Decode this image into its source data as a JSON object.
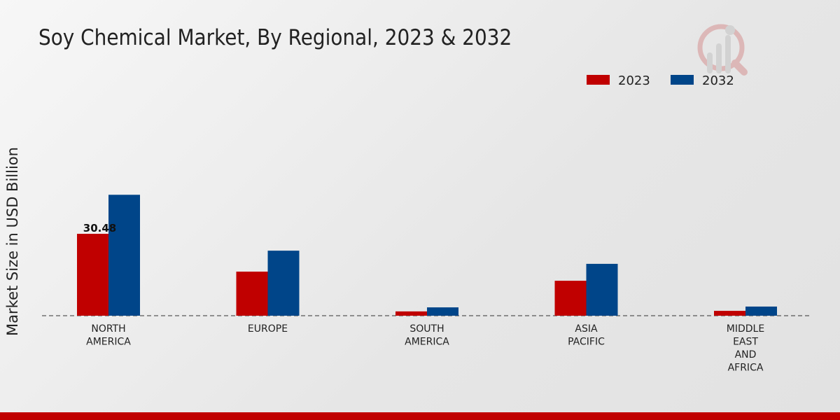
{
  "chart_data": {
    "type": "bar",
    "title": "Soy Chemical Market, By Regional, 2023 & 2032",
    "xlabel": "",
    "ylabel": "Market Size in USD Billion",
    "categories": [
      [
        "NORTH",
        "AMERICA"
      ],
      [
        "EUROPE"
      ],
      [
        "SOUTH",
        "AMERICA"
      ],
      [
        "ASIA",
        "PACIFIC"
      ],
      [
        "MIDDLE",
        "EAST",
        "AND",
        "AFRICA"
      ]
    ],
    "series": [
      {
        "name": "2023",
        "color": "#c00000",
        "values": [
          30.48,
          16.4,
          1.6,
          13.0,
          1.8
        ]
      },
      {
        "name": "2032",
        "color": "#004589",
        "values": [
          45.0,
          24.2,
          3.1,
          19.3,
          3.4
        ]
      }
    ],
    "data_labels": [
      {
        "series": 0,
        "index": 0,
        "text": "30.48"
      }
    ],
    "ylim": [
      0,
      50
    ],
    "legend": "top-right",
    "grid": false
  }
}
